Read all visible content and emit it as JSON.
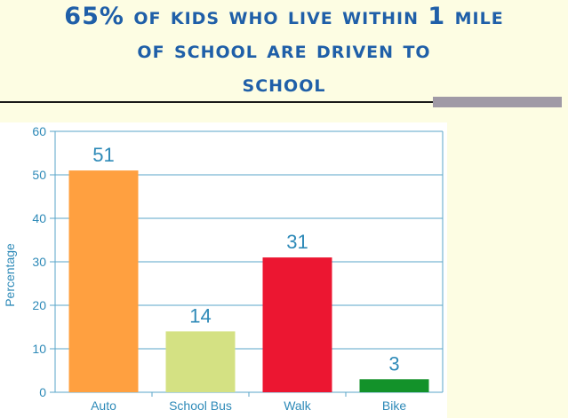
{
  "slide": {
    "title_line1": "65% of kids who live within 1 mile",
    "title_line2": "of school are driven to",
    "title_line3": "school",
    "title_color": "#1f5fa8",
    "background": "#fdfde3"
  },
  "chart_data": {
    "type": "bar",
    "categories": [
      "Auto",
      "School Bus",
      "Walk",
      "Bike"
    ],
    "values": [
      51,
      14,
      31,
      3
    ],
    "colors": [
      "#ffa040",
      "#d4e183",
      "#ec1631",
      "#13922a"
    ],
    "data_labels": [
      "51",
      "14",
      "31",
      "3"
    ],
    "ylabel": "Percentage",
    "xlabel": "",
    "ylim": [
      0,
      60
    ],
    "yticks": [
      0,
      10,
      20,
      30,
      40,
      50,
      60
    ],
    "grid": true,
    "gridline_color": "#5aa6c8"
  }
}
